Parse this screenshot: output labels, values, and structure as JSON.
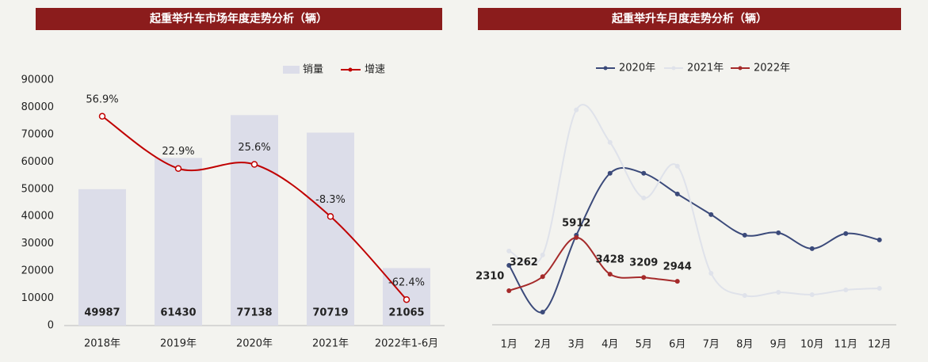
{
  "chart_data": [
    {
      "type": "bar",
      "title": "起重举升车市场年度走势分析（辆）",
      "categories": [
        "2018年",
        "2019年",
        "2020年",
        "2021年",
        "2022年1-6月"
      ],
      "series": [
        {
          "name": "销量",
          "color": "#dcdde9",
          "values": [
            49987,
            61430,
            77138,
            70719,
            21065
          ]
        },
        {
          "name": "增速",
          "color": "#c00000",
          "type": "line",
          "axis": "y2",
          "values": [
            56.9,
            22.9,
            25.6,
            -8.3,
            -62.4
          ],
          "value_labels": [
            "56.9%",
            "22.9%",
            "25.6%",
            "-8.3%",
            "-62.4%"
          ]
        }
      ],
      "ylim": [
        0,
        90000
      ],
      "yticks": [
        0,
        10000,
        20000,
        30000,
        40000,
        50000,
        60000,
        70000,
        80000,
        90000
      ],
      "y2lim": [
        -79.3,
        80.5
      ],
      "legend": "top"
    },
    {
      "type": "line",
      "title": "起重举升车月度走势分析（辆）",
      "categories": [
        "1月",
        "2月",
        "3月",
        "4月",
        "5月",
        "6月",
        "7月",
        "8月",
        "9月",
        "10月",
        "11月",
        "12月"
      ],
      "series": [
        {
          "name": "2020年",
          "color": "#3b4a7a",
          "values": [
            4030,
            860,
            6073,
            10267,
            10267,
            8869,
            7471,
            6073,
            6235,
            5160,
            6181,
            5751
          ]
        },
        {
          "name": "2021年",
          "color": "#dfe2ea",
          "values": [
            4998,
            4729,
            14568,
            12364,
            8600,
            10751,
            3493,
            1987,
            2202,
            2041,
            2364,
            2471
          ]
        },
        {
          "name": "2022年",
          "color": "#a52a2a",
          "values": [
            2310,
            3262,
            5912,
            3428,
            3209,
            2944,
            null,
            null,
            null,
            null,
            null,
            null
          ],
          "show_labels": true
        }
      ],
      "ylim": [
        0,
        16700
      ],
      "legend": "top"
    }
  ]
}
